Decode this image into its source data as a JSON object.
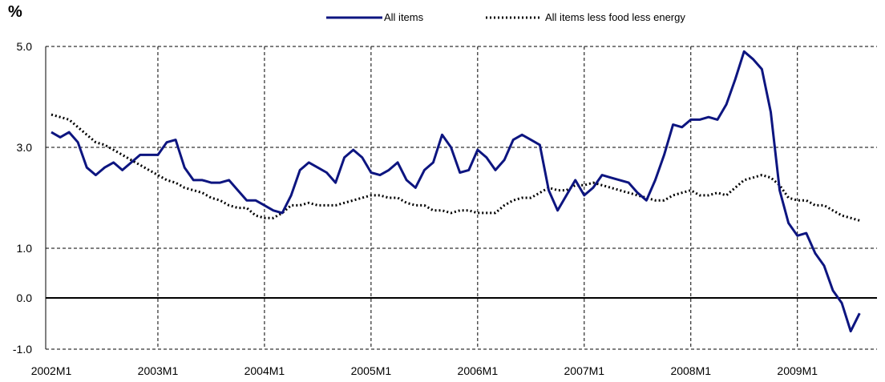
{
  "unit_label": "%",
  "chart_data": {
    "type": "line",
    "title": "",
    "xlabel": "",
    "ylabel": "%",
    "ylim": [
      -1.0,
      5.0
    ],
    "yticks": [
      5.0,
      3.0,
      1.0,
      0.0,
      -1.0
    ],
    "ytick_labels": [
      "5.0",
      "3.0",
      "1.0",
      "0.0",
      "-1.0"
    ],
    "xtick_labels": [
      "2002M1",
      "2003M1",
      "2004M1",
      "2005M1",
      "2006M1",
      "2007M1",
      "2008M1",
      "2009M1"
    ],
    "grid": "dashed, at y ticks and x ticks",
    "legend_position": "top",
    "x": [
      "2002M1",
      "2002M2",
      "2002M3",
      "2002M4",
      "2002M5",
      "2002M6",
      "2002M7",
      "2002M8",
      "2002M9",
      "2002M10",
      "2002M11",
      "2002M12",
      "2003M1",
      "2003M2",
      "2003M3",
      "2003M4",
      "2003M5",
      "2003M6",
      "2003M7",
      "2003M8",
      "2003M9",
      "2003M10",
      "2003M11",
      "2003M12",
      "2004M1",
      "2004M2",
      "2004M3",
      "2004M4",
      "2004M5",
      "2004M6",
      "2004M7",
      "2004M8",
      "2004M9",
      "2004M10",
      "2004M11",
      "2004M12",
      "2005M1",
      "2005M2",
      "2005M3",
      "2005M4",
      "2005M5",
      "2005M6",
      "2005M7",
      "2005M8",
      "2005M9",
      "2005M10",
      "2005M11",
      "2005M12",
      "2006M1",
      "2006M2",
      "2006M3",
      "2006M4",
      "2006M5",
      "2006M6",
      "2006M7",
      "2006M8",
      "2006M9",
      "2006M10",
      "2006M11",
      "2006M12",
      "2007M1",
      "2007M2",
      "2007M3",
      "2007M4",
      "2007M5",
      "2007M6",
      "2007M7",
      "2007M8",
      "2007M9",
      "2007M10",
      "2007M11",
      "2007M12",
      "2008M1",
      "2008M2",
      "2008M3",
      "2008M4",
      "2008M5",
      "2008M6",
      "2008M7",
      "2008M8",
      "2008M9",
      "2008M10",
      "2008M11",
      "2008M12",
      "2009M1",
      "2009M2",
      "2009M3",
      "2009M4",
      "2009M5",
      "2009M6",
      "2009M7",
      "2009M8"
    ],
    "series": [
      {
        "name": "All items",
        "color": "#0d1580",
        "style": "solid",
        "values": [
          3.3,
          3.2,
          3.3,
          3.1,
          2.6,
          2.45,
          2.6,
          2.7,
          2.55,
          2.7,
          2.85,
          2.85,
          2.85,
          3.1,
          3.15,
          2.6,
          2.35,
          2.35,
          2.3,
          2.3,
          2.35,
          2.15,
          1.95,
          1.95,
          1.85,
          1.75,
          1.7,
          2.05,
          2.55,
          2.7,
          2.6,
          2.5,
          2.3,
          2.8,
          2.95,
          2.8,
          2.5,
          2.45,
          2.55,
          2.7,
          2.35,
          2.2,
          2.55,
          2.7,
          3.25,
          3.0,
          2.5,
          2.55,
          2.95,
          2.8,
          2.55,
          2.75,
          3.15,
          3.25,
          3.15,
          3.05,
          2.15,
          1.75,
          2.05,
          2.35,
          2.05,
          2.2,
          2.45,
          2.4,
          2.35,
          2.3,
          2.1,
          1.95,
          2.35,
          2.85,
          3.45,
          3.4,
          3.55,
          3.55,
          3.6,
          3.55,
          3.85,
          4.35,
          4.9,
          4.75,
          4.55,
          3.7,
          2.15,
          1.5,
          1.25,
          1.3,
          0.9,
          0.65,
          0.15,
          -0.1,
          -0.65,
          -0.3
        ]
      },
      {
        "name": "All items less food less energy",
        "color": "#000000",
        "style": "dotted",
        "values": [
          3.65,
          3.6,
          3.55,
          3.4,
          3.25,
          3.1,
          3.05,
          2.95,
          2.85,
          2.75,
          2.65,
          2.55,
          2.45,
          2.35,
          2.3,
          2.2,
          2.15,
          2.1,
          2.0,
          1.95,
          1.85,
          1.8,
          1.8,
          1.65,
          1.6,
          1.6,
          1.7,
          1.85,
          1.85,
          1.9,
          1.85,
          1.85,
          1.85,
          1.9,
          1.95,
          2.0,
          2.05,
          2.05,
          2.0,
          2.0,
          1.9,
          1.85,
          1.85,
          1.75,
          1.75,
          1.7,
          1.75,
          1.75,
          1.7,
          1.7,
          1.7,
          1.85,
          1.95,
          2.0,
          2.0,
          2.1,
          2.2,
          2.15,
          2.15,
          2.25,
          2.25,
          2.3,
          2.25,
          2.2,
          2.15,
          2.1,
          2.05,
          2.0,
          1.95,
          1.95,
          2.05,
          2.1,
          2.15,
          2.05,
          2.05,
          2.1,
          2.05,
          2.2,
          2.35,
          2.4,
          2.45,
          2.4,
          2.25,
          2.0,
          1.95,
          1.95,
          1.85,
          1.85,
          1.75,
          1.65,
          1.6,
          1.55
        ]
      }
    ]
  }
}
